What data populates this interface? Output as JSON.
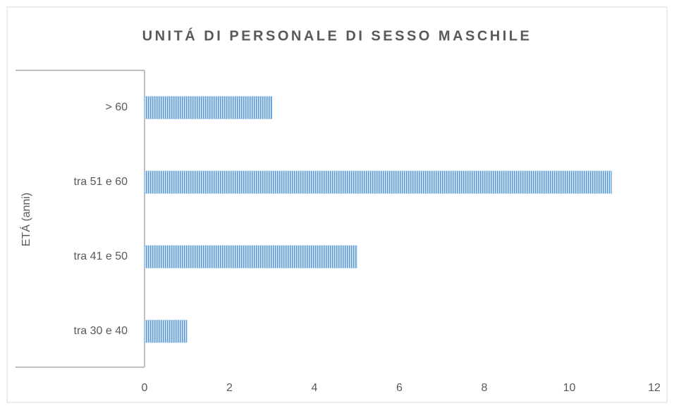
{
  "chart_data": {
    "type": "bar",
    "orientation": "horizontal",
    "title": "UNITÁ DI PERSONALE DI SESSO MASCHILE",
    "y_label": "ETÁ (anni)",
    "categories": [
      "tra 30 e 40",
      "tra 41 e 50",
      "tra 51 e 60",
      "> 60"
    ],
    "values": [
      1,
      5,
      11,
      3
    ],
    "color": "#5b9bd5",
    "xlim": [
      0,
      12
    ],
    "xticks": [
      0,
      2,
      4,
      6,
      8,
      10,
      12
    ],
    "grid": false
  }
}
